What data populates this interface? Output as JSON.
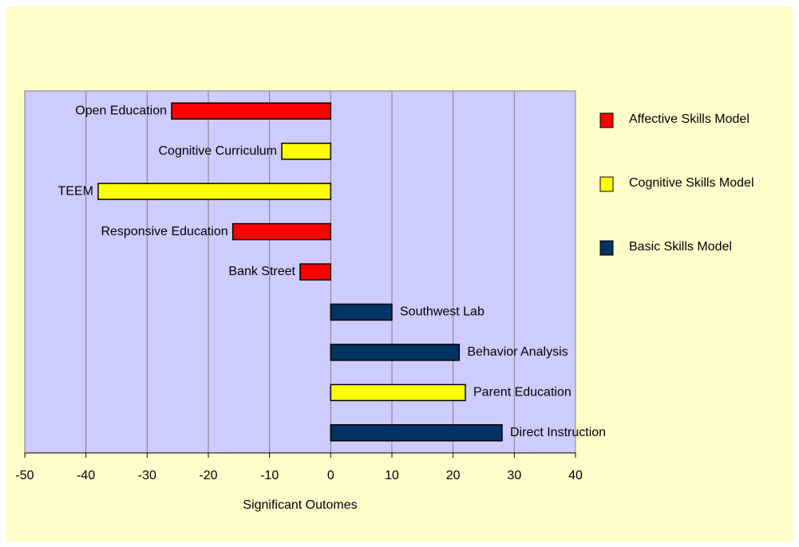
{
  "chart_data": {
    "type": "hbar",
    "categories": [
      "Open Education",
      "Cognitive Curriculum",
      "TEEM",
      "Responsive Education",
      "Bank Street",
      "Southwest Lab",
      "Behavior Analysis",
      "Parent Education",
      "Direct Instruction"
    ],
    "series": [
      {
        "name": "Affective Skills Model",
        "color": "#ff0000",
        "values": [
          -26,
          null,
          null,
          -16,
          -5,
          null,
          null,
          null,
          null
        ]
      },
      {
        "name": "Cognitive Skills Model",
        "color": "#ffff00",
        "values": [
          null,
          -8,
          -38,
          null,
          null,
          null,
          null,
          22,
          null
        ]
      },
      {
        "name": "Basic Skills Model",
        "color": "#003366",
        "values": [
          null,
          null,
          null,
          null,
          null,
          10,
          21,
          null,
          28
        ]
      }
    ],
    "xlabel": "Significant Outomes",
    "xlim": [
      -50,
      40
    ],
    "xticks": [
      -50,
      -40,
      -30,
      -20,
      -10,
      0,
      10,
      20,
      30,
      40
    ],
    "grid": true,
    "legend": "right"
  }
}
